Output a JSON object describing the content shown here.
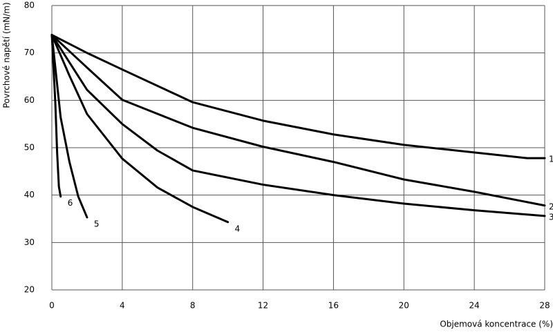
{
  "chart_data": {
    "type": "line",
    "x_label": "Objemová koncentrace (%)",
    "y_label": "Povrchové napětí (mN/m)",
    "xlim": [
      0,
      28
    ],
    "ylim": [
      20,
      80
    ],
    "xticks": [
      0,
      4,
      8,
      12,
      16,
      20,
      24,
      28
    ],
    "yticks": [
      20,
      30,
      40,
      50,
      60,
      70,
      80
    ],
    "grid": true,
    "series": [
      {
        "name": "1",
        "color": "#000000",
        "x": [
          0,
          2,
          4,
          8,
          12,
          16,
          20,
          24,
          27,
          28
        ],
        "values": [
          73.8,
          70,
          66.5,
          59.6,
          55.7,
          52.8,
          50.6,
          49,
          47.8,
          47.8
        ]
      },
      {
        "name": "2",
        "color": "#000000",
        "x": [
          0,
          2,
          4,
          8,
          12,
          16,
          20,
          24,
          28
        ],
        "values": [
          73.8,
          66.9,
          60.1,
          54.2,
          50.2,
          47,
          43.3,
          40.7,
          37.8
        ]
      },
      {
        "name": "3",
        "color": "#000000",
        "x": [
          0,
          2,
          4,
          6,
          8,
          12,
          16,
          20,
          24,
          28
        ],
        "values": [
          73.8,
          62.2,
          55,
          49.4,
          45.2,
          42.2,
          40,
          38.2,
          36.8,
          35.6
        ]
      },
      {
        "name": "4",
        "color": "#000000",
        "x": [
          0,
          1,
          2,
          4,
          6,
          8,
          10
        ],
        "values": [
          73.8,
          65.2,
          57.1,
          47.7,
          41.6,
          37.5,
          34.3
        ]
      },
      {
        "name": "5",
        "color": "#000000",
        "x": [
          0,
          0.5,
          1,
          1.5,
          2
        ],
        "values": [
          73.8,
          56.4,
          47,
          39.7,
          35.3
        ]
      },
      {
        "name": "6",
        "color": "#000000",
        "x": [
          0,
          0.2,
          0.3,
          0.4,
          0.5
        ],
        "values": [
          73.8,
          59.3,
          49,
          41.8,
          39.7
        ]
      }
    ]
  }
}
